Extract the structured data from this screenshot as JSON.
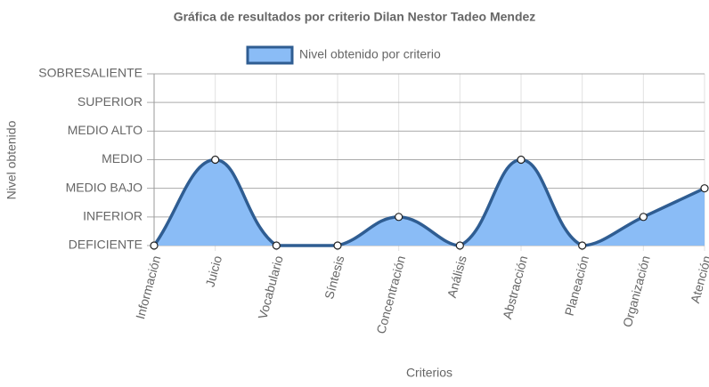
{
  "chart_data": {
    "type": "line",
    "title": "Gráfica de resultados por criterio Dilan Nestor Tadeo Mendez",
    "x_label": "Criterios",
    "y_label": "Nivel obtenido",
    "categories": [
      "Información",
      "Juicio",
      "Vocabulario",
      "Síntesis",
      "Concentración",
      "Análisis",
      "Abstracción",
      "Planeación",
      "Organización",
      "Atención"
    ],
    "series": [
      {
        "name": "Nivel obtenido por criterio",
        "color": "#2f5d92",
        "fill": "#8abcf6",
        "values": [
          0,
          3,
          0,
          0,
          1,
          0,
          3,
          0,
          1,
          2
        ]
      }
    ],
    "ylim": [
      0,
      6
    ],
    "yticks": [
      {
        "value": 0,
        "label": "DEFICIENTE"
      },
      {
        "value": 1,
        "label": "INFERIOR"
      },
      {
        "value": 2,
        "label": "MEDIO BAJO"
      },
      {
        "value": 3,
        "label": "MEDIO"
      },
      {
        "value": 4,
        "label": "MEDIO ALTO"
      },
      {
        "value": 5,
        "label": "SUPERIOR"
      },
      {
        "value": 6,
        "label": "SOBRESALIENTE"
      }
    ],
    "grid": true,
    "legend": "top"
  }
}
